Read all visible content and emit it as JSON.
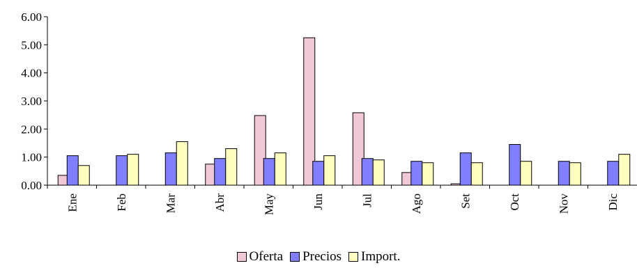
{
  "chart_data": {
    "type": "bar",
    "categories": [
      "Ene",
      "Feb",
      "Mar",
      "Abr",
      "May",
      "Jun",
      "Jul",
      "Ago",
      "Set",
      "Oct",
      "Nov",
      "Dic"
    ],
    "series": [
      {
        "name": "Oferta",
        "color": "#f0c8d8",
        "values": [
          0.35,
          0.0,
          0.0,
          0.75,
          2.48,
          5.25,
          2.58,
          0.45,
          0.05,
          0.0,
          0.0,
          0.0
        ]
      },
      {
        "name": "Precios",
        "color": "#8080ff",
        "values": [
          1.05,
          1.05,
          1.15,
          0.95,
          0.95,
          0.85,
          0.95,
          0.85,
          1.15,
          1.45,
          0.85,
          0.85
        ]
      },
      {
        "name": "Import.",
        "color": "#ffffc0",
        "values": [
          0.7,
          1.1,
          1.55,
          1.3,
          1.15,
          1.05,
          0.9,
          0.8,
          0.8,
          0.85,
          0.8,
          1.1
        ]
      }
    ],
    "yticks": [
      "0.00",
      "1.00",
      "2.00",
      "3.00",
      "4.00",
      "5.00",
      "6.00"
    ],
    "ylim": [
      0,
      6
    ],
    "title": "",
    "xlabel": "",
    "ylabel": "",
    "grid": false,
    "legend_position": "bottom"
  }
}
